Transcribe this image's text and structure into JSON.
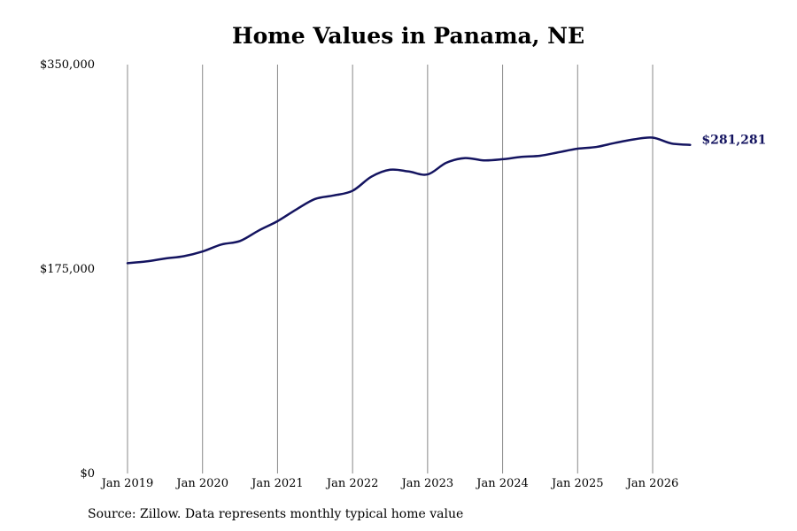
{
  "chart_data": {
    "type": "line",
    "title": "Home Values in Panama, NE",
    "xlabel": "",
    "ylabel": "",
    "ylim": [
      0,
      350000
    ],
    "yticks": [
      0,
      175000,
      350000
    ],
    "ytick_labels": [
      "$0",
      "$175,000",
      "$350,000"
    ],
    "xticks": [
      "2019-01",
      "2020-01",
      "2021-01",
      "2022-01",
      "2023-01",
      "2024-01",
      "2025-01",
      "2026-01"
    ],
    "xtick_labels": [
      "Jan 2019",
      "Jan 2020",
      "Jan 2021",
      "Jan 2022",
      "Jan 2023",
      "Jan 2024",
      "Jan 2025",
      "Jan 2026"
    ],
    "grid": "vertical",
    "series": [
      {
        "color": "#141460",
        "x": [
          "2019-01",
          "2019-04",
          "2019-07",
          "2019-10",
          "2020-01",
          "2020-04",
          "2020-07",
          "2020-10",
          "2021-01",
          "2021-04",
          "2021-07",
          "2021-10",
          "2022-01",
          "2022-04",
          "2022-07",
          "2022-10",
          "2023-01",
          "2023-04",
          "2023-07",
          "2023-10",
          "2024-01",
          "2024-04",
          "2024-07",
          "2024-10",
          "2025-01",
          "2025-04",
          "2025-07",
          "2025-10",
          "2026-01",
          "2026-04",
          "2026-07"
        ],
        "values": [
          180000,
          181500,
          184000,
          186000,
          190000,
          196000,
          199000,
          208000,
          216000,
          226000,
          235000,
          238000,
          242000,
          254000,
          260000,
          258500,
          256000,
          266000,
          270000,
          268000,
          269000,
          271000,
          272000,
          275000,
          278000,
          279500,
          283000,
          286000,
          287500,
          282500,
          281281
        ]
      }
    ],
    "last_value_label": "$281,281"
  },
  "footer": {
    "source": "Source: Zillow. Data represents monthly typical home value"
  },
  "colors": {
    "line": "#141460",
    "grid": "#888888",
    "text": "#000000"
  }
}
